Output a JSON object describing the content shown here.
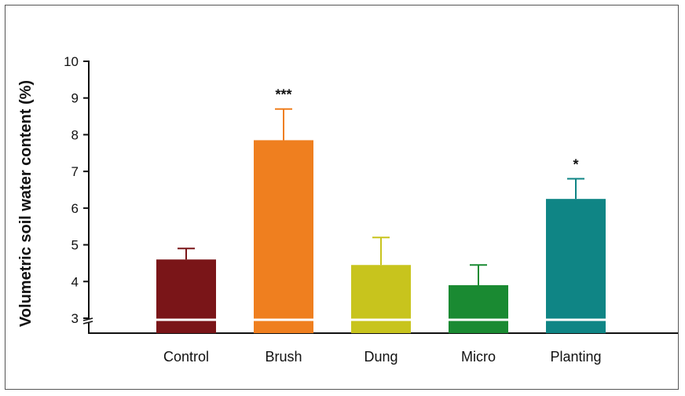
{
  "chart_data": {
    "type": "bar",
    "title": "",
    "xlabel": "",
    "ylabel": "Volumetric soil water content (%)",
    "ylim": [
      3,
      10
    ],
    "yticks": [
      3,
      4,
      5,
      6,
      7,
      8,
      9,
      10
    ],
    "axis_break": true,
    "grid": false,
    "categories": [
      "Control",
      "Brush",
      "Dung",
      "Micro",
      "Planting"
    ],
    "values": [
      4.6,
      7.85,
      4.45,
      3.9,
      6.25
    ],
    "errors": [
      0.3,
      0.85,
      0.75,
      0.55,
      0.55
    ],
    "annotations": [
      "",
      "***",
      "",
      "",
      "*"
    ],
    "colors": [
      "#7a1518",
      "#ef7f1f",
      "#c8c41d",
      "#1a8a32",
      "#0f8585"
    ]
  }
}
